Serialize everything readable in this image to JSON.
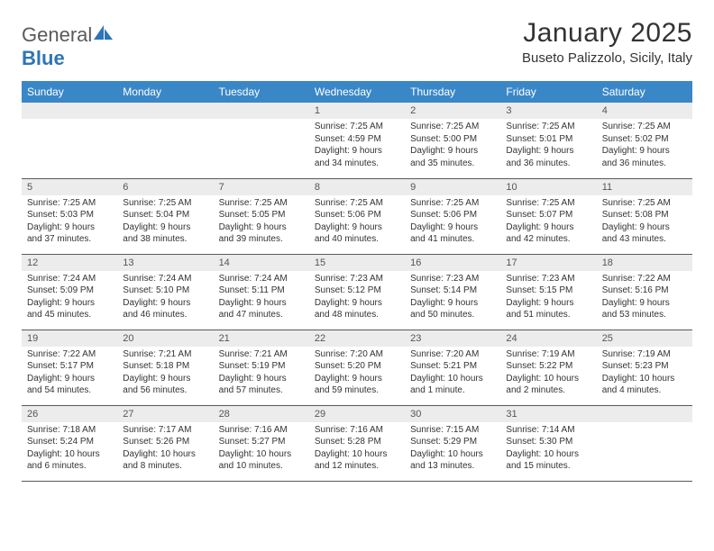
{
  "brand": {
    "name_part1": "General",
    "name_part2": "Blue"
  },
  "title": "January 2025",
  "location": "Buseto Palizzolo, Sicily, Italy",
  "header_bg": "#3a87c8",
  "header_fg": "#ffffff",
  "daynum_bg": "#ececec",
  "row_border": "#5a5a5a",
  "text_color": "#333333",
  "day_headers": [
    "Sunday",
    "Monday",
    "Tuesday",
    "Wednesday",
    "Thursday",
    "Friday",
    "Saturday"
  ],
  "weeks": [
    [
      null,
      null,
      null,
      {
        "n": "1",
        "sr": "7:25 AM",
        "ss": "4:59 PM",
        "dl": "9 hours and 34 minutes."
      },
      {
        "n": "2",
        "sr": "7:25 AM",
        "ss": "5:00 PM",
        "dl": "9 hours and 35 minutes."
      },
      {
        "n": "3",
        "sr": "7:25 AM",
        "ss": "5:01 PM",
        "dl": "9 hours and 36 minutes."
      },
      {
        "n": "4",
        "sr": "7:25 AM",
        "ss": "5:02 PM",
        "dl": "9 hours and 36 minutes."
      }
    ],
    [
      {
        "n": "5",
        "sr": "7:25 AM",
        "ss": "5:03 PM",
        "dl": "9 hours and 37 minutes."
      },
      {
        "n": "6",
        "sr": "7:25 AM",
        "ss": "5:04 PM",
        "dl": "9 hours and 38 minutes."
      },
      {
        "n": "7",
        "sr": "7:25 AM",
        "ss": "5:05 PM",
        "dl": "9 hours and 39 minutes."
      },
      {
        "n": "8",
        "sr": "7:25 AM",
        "ss": "5:06 PM",
        "dl": "9 hours and 40 minutes."
      },
      {
        "n": "9",
        "sr": "7:25 AM",
        "ss": "5:06 PM",
        "dl": "9 hours and 41 minutes."
      },
      {
        "n": "10",
        "sr": "7:25 AM",
        "ss": "5:07 PM",
        "dl": "9 hours and 42 minutes."
      },
      {
        "n": "11",
        "sr": "7:25 AM",
        "ss": "5:08 PM",
        "dl": "9 hours and 43 minutes."
      }
    ],
    [
      {
        "n": "12",
        "sr": "7:24 AM",
        "ss": "5:09 PM",
        "dl": "9 hours and 45 minutes."
      },
      {
        "n": "13",
        "sr": "7:24 AM",
        "ss": "5:10 PM",
        "dl": "9 hours and 46 minutes."
      },
      {
        "n": "14",
        "sr": "7:24 AM",
        "ss": "5:11 PM",
        "dl": "9 hours and 47 minutes."
      },
      {
        "n": "15",
        "sr": "7:23 AM",
        "ss": "5:12 PM",
        "dl": "9 hours and 48 minutes."
      },
      {
        "n": "16",
        "sr": "7:23 AM",
        "ss": "5:14 PM",
        "dl": "9 hours and 50 minutes."
      },
      {
        "n": "17",
        "sr": "7:23 AM",
        "ss": "5:15 PM",
        "dl": "9 hours and 51 minutes."
      },
      {
        "n": "18",
        "sr": "7:22 AM",
        "ss": "5:16 PM",
        "dl": "9 hours and 53 minutes."
      }
    ],
    [
      {
        "n": "19",
        "sr": "7:22 AM",
        "ss": "5:17 PM",
        "dl": "9 hours and 54 minutes."
      },
      {
        "n": "20",
        "sr": "7:21 AM",
        "ss": "5:18 PM",
        "dl": "9 hours and 56 minutes."
      },
      {
        "n": "21",
        "sr": "7:21 AM",
        "ss": "5:19 PM",
        "dl": "9 hours and 57 minutes."
      },
      {
        "n": "22",
        "sr": "7:20 AM",
        "ss": "5:20 PM",
        "dl": "9 hours and 59 minutes."
      },
      {
        "n": "23",
        "sr": "7:20 AM",
        "ss": "5:21 PM",
        "dl": "10 hours and 1 minute."
      },
      {
        "n": "24",
        "sr": "7:19 AM",
        "ss": "5:22 PM",
        "dl": "10 hours and 2 minutes."
      },
      {
        "n": "25",
        "sr": "7:19 AM",
        "ss": "5:23 PM",
        "dl": "10 hours and 4 minutes."
      }
    ],
    [
      {
        "n": "26",
        "sr": "7:18 AM",
        "ss": "5:24 PM",
        "dl": "10 hours and 6 minutes."
      },
      {
        "n": "27",
        "sr": "7:17 AM",
        "ss": "5:26 PM",
        "dl": "10 hours and 8 minutes."
      },
      {
        "n": "28",
        "sr": "7:16 AM",
        "ss": "5:27 PM",
        "dl": "10 hours and 10 minutes."
      },
      {
        "n": "29",
        "sr": "7:16 AM",
        "ss": "5:28 PM",
        "dl": "10 hours and 12 minutes."
      },
      {
        "n": "30",
        "sr": "7:15 AM",
        "ss": "5:29 PM",
        "dl": "10 hours and 13 minutes."
      },
      {
        "n": "31",
        "sr": "7:14 AM",
        "ss": "5:30 PM",
        "dl": "10 hours and 15 minutes."
      },
      null
    ]
  ],
  "labels": {
    "sunrise": "Sunrise:",
    "sunset": "Sunset:",
    "daylight": "Daylight:"
  }
}
